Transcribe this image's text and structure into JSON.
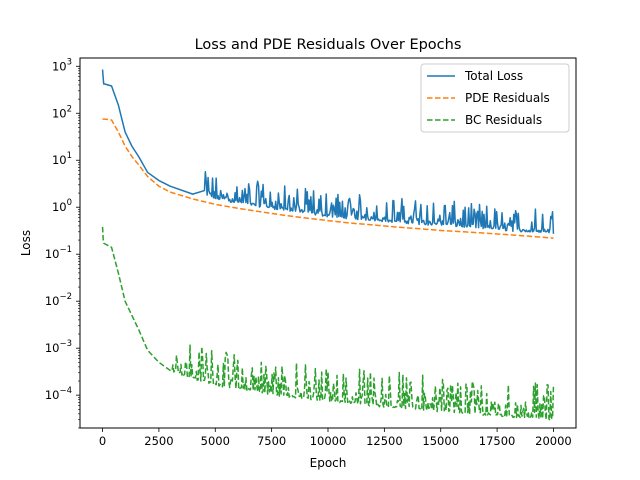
{
  "chart_data": {
    "type": "line",
    "title": "Loss and PDE Residuals Over Epochs",
    "xlabel": "Epoch",
    "ylabel": "Loss",
    "xlim": [
      -1000,
      21000
    ],
    "ylim": [
      2e-05,
      1500
    ],
    "yscale": "log",
    "grid": false,
    "legend_position": "top-right",
    "x_ticks": [
      0,
      2500,
      5000,
      7500,
      10000,
      12500,
      15000,
      17500,
      20000
    ],
    "x_tick_labels": [
      "0",
      "2500",
      "5000",
      "7500",
      "10000",
      "12500",
      "15000",
      "17500",
      "20000"
    ],
    "y_ticks": [
      0.0001,
      0.001,
      0.01,
      0.1,
      1,
      10,
      100,
      1000
    ],
    "y_tick_labels": [
      {
        "base": "10",
        "exp": "−4"
      },
      {
        "base": "10",
        "exp": "−3"
      },
      {
        "base": "10",
        "exp": "−2"
      },
      {
        "base": "10",
        "exp": "−1"
      },
      {
        "base": "10",
        "exp": "0"
      },
      {
        "base": "10",
        "exp": "1"
      },
      {
        "base": "10",
        "exp": "2"
      },
      {
        "base": "10",
        "exp": "3"
      }
    ],
    "series": [
      {
        "name": "Total Loss",
        "color": "#1f77b4",
        "linestyle": "solid",
        "x": [
          0,
          50,
          100,
          400,
          700,
          1000,
          1300,
          1600,
          2000,
          2500,
          3000,
          4000,
          5000,
          6000,
          7000,
          8000,
          9000,
          10000,
          11000,
          12000,
          13000,
          14000,
          15000,
          16000,
          17000,
          18000,
          19000,
          20000
        ],
        "y": [
          850,
          420,
          420,
          380,
          150,
          40,
          20,
          12,
          5.5,
          3.7,
          2.8,
          1.9,
          1.45,
          1.2,
          1.0,
          0.85,
          0.72,
          0.62,
          0.56,
          0.51,
          0.47,
          0.43,
          0.4,
          0.37,
          0.34,
          0.31,
          0.29,
          0.27
        ],
        "noise": {
          "start": 4500,
          "end": 20000,
          "peak_ratio": [
            1.2,
            3.5
          ]
        }
      },
      {
        "name": "PDE Residuals",
        "color": "#ff7f0e",
        "linestyle": "dashed",
        "x": [
          0,
          50,
          100,
          400,
          700,
          1000,
          1300,
          1600,
          2000,
          2500,
          3000,
          4000,
          5000,
          6000,
          7000,
          8000,
          9000,
          10000,
          11000,
          12000,
          13000,
          14000,
          15000,
          16000,
          17000,
          18000,
          19000,
          20000
        ],
        "y": [
          75,
          75,
          75,
          72,
          40,
          20,
          12,
          8,
          4.5,
          2.8,
          2.1,
          1.5,
          1.15,
          0.95,
          0.8,
          0.68,
          0.59,
          0.52,
          0.46,
          0.42,
          0.38,
          0.35,
          0.32,
          0.3,
          0.28,
          0.26,
          0.24,
          0.22
        ]
      },
      {
        "name": "BC Residuals",
        "color": "#2ca02c",
        "linestyle": "dashed",
        "x": [
          0,
          30,
          60,
          400,
          700,
          1000,
          1300,
          1600,
          2000,
          2500,
          3000,
          4000,
          5000,
          6000,
          7000,
          8000,
          9000,
          10000,
          11000,
          12000,
          13000,
          14000,
          15000,
          16000,
          17000,
          18000,
          19000,
          20000
        ],
        "y": [
          0.38,
          0.2,
          0.17,
          0.14,
          0.04,
          0.01,
          0.005,
          0.0025,
          0.0009,
          0.0005,
          0.00033,
          0.00022,
          0.00016,
          0.00013,
          0.00011,
          9.3e-05,
          8.1e-05,
          7.2e-05,
          6.5e-05,
          5.8e-05,
          5.3e-05,
          4.8e-05,
          4.4e-05,
          4e-05,
          3.7e-05,
          3.4e-05,
          3.1e-05,
          2.9e-05
        ],
        "noise": {
          "start": 3000,
          "end": 20000,
          "peak_ratio": [
            1.4,
            6.0
          ]
        }
      }
    ]
  }
}
